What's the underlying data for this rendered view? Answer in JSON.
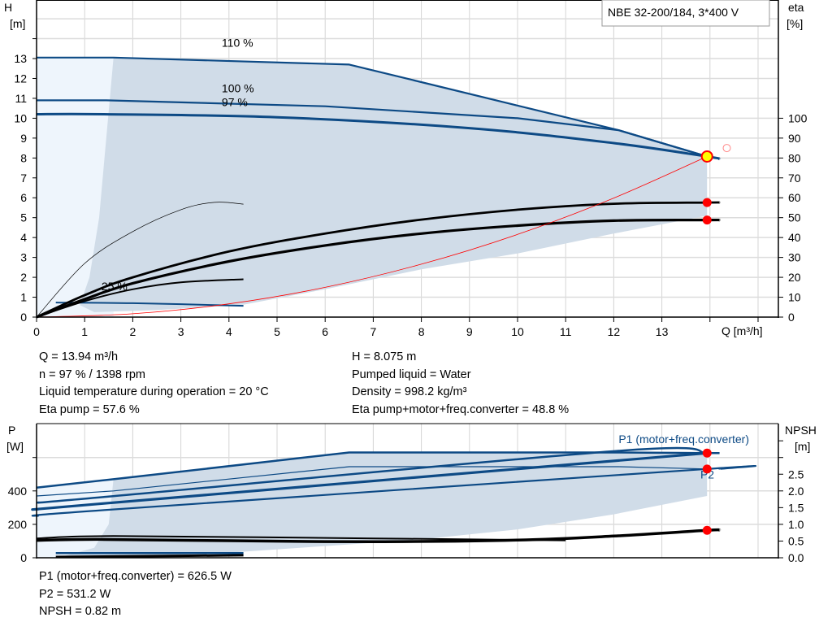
{
  "title_box": "NBE 32-200/184, 3*400 V",
  "colors": {
    "curve_blue": "#0d4a85",
    "region_fill": "#d0dce8",
    "region_light": "#eef5fc",
    "system_curve": "#ff0000",
    "duty_point": "#ff0000",
    "duty_point_fill": "#ffff00"
  },
  "chart_data": [
    {
      "type": "line",
      "title": "",
      "xlabel": "Q [m³/h]",
      "ylabel": "H",
      "yunit": "[m]",
      "y2label": "eta",
      "y2unit": "[%]",
      "xlim": [
        0,
        15.3
      ],
      "ylim": [
        0,
        16
      ],
      "y2lim": [
        0,
        160
      ],
      "xticks": [
        "0",
        "1",
        "2",
        "3",
        "4",
        "5",
        "6",
        "7",
        "8",
        "9",
        "10",
        "11",
        "12",
        "13"
      ],
      "yticks": [
        "0",
        "1",
        "2",
        "3",
        "4",
        "5",
        "6",
        "7",
        "8",
        "9",
        "10",
        "11",
        "12",
        "13"
      ],
      "y2ticks": [
        "0",
        "10",
        "20",
        "30",
        "40",
        "50",
        "60",
        "70",
        "80",
        "90",
        "100"
      ],
      "grid": true,
      "curve_labels": [
        {
          "text": "110 %",
          "x": 3.85,
          "y": 13.6
        },
        {
          "text": "100 %",
          "x": 3.85,
          "y": 11.3
        },
        {
          "text": "97 %",
          "x": 3.85,
          "y": 10.6
        },
        {
          "text": "25 %",
          "x": 1.35,
          "y": 1.35
        }
      ],
      "series": [
        {
          "id": "h-110",
          "axis": "H",
          "points": [
            [
              0,
              13.05
            ],
            [
              1.6,
              13.05
            ],
            [
              6.5,
              12.7
            ],
            [
              12.1,
              9.4
            ],
            [
              13.94,
              8.08
            ]
          ]
        },
        {
          "id": "h-100",
          "axis": "H",
          "points": [
            [
              0,
              10.9
            ],
            [
              1.45,
              10.9
            ],
            [
              6,
              10.6
            ],
            [
              10,
              10.0
            ],
            [
              12.1,
              9.4
            ],
            [
              13.94,
              8.08
            ]
          ]
        },
        {
          "id": "h-97",
          "axis": "H",
          "points": [
            [
              0,
              10.2
            ],
            [
              1.4,
              10.2
            ],
            [
              5,
              10.05
            ],
            [
              9,
              9.5
            ],
            [
              12,
              8.75
            ],
            [
              13.94,
              8.075
            ],
            [
              14.2,
              7.95
            ]
          ]
        },
        {
          "id": "h-25",
          "axis": "H",
          "points": [
            [
              0.4,
              0.73
            ],
            [
              2,
              0.7
            ],
            [
              4.3,
              0.57
            ]
          ]
        },
        {
          "id": "eta-pump",
          "axis": "eta",
          "points": [
            [
              0,
              0
            ],
            [
              1,
              11
            ],
            [
              2,
              20
            ],
            [
              4,
              33
            ],
            [
              6,
              42
            ],
            [
              8,
              49
            ],
            [
              10,
              54
            ],
            [
              12,
              57
            ],
            [
              13.94,
              57.6
            ],
            [
              14.2,
              57.6
            ]
          ]
        },
        {
          "id": "eta-total",
          "axis": "eta",
          "points": [
            [
              0,
              0
            ],
            [
              1,
              9
            ],
            [
              2,
              17
            ],
            [
              4,
              28
            ],
            [
              6,
              36
            ],
            [
              8,
              42
            ],
            [
              10,
              46
            ],
            [
              12,
              48.5
            ],
            [
              13.94,
              48.8
            ],
            [
              14.2,
              48.8
            ]
          ]
        },
        {
          "id": "eta-max-speed-low",
          "axis": "eta",
          "points": [
            [
              0,
              0
            ],
            [
              1,
              27
            ],
            [
              2,
              43
            ],
            [
              3,
              54
            ],
            [
              3.7,
              57.7
            ],
            [
              4.3,
              56.8
            ]
          ]
        },
        {
          "id": "eta-25",
          "axis": "eta",
          "points": [
            [
              0,
              0
            ],
            [
              1,
              8
            ],
            [
              2,
              14
            ],
            [
              3,
              17.5
            ],
            [
              4.3,
              19
            ]
          ]
        },
        {
          "id": "system-curve",
          "axis": "H",
          "points": [
            [
              0,
              0
            ],
            [
              2,
              0.166
            ],
            [
              4,
              0.665
            ],
            [
              6,
              1.496
            ],
            [
              8,
              2.66
            ],
            [
              10,
              4.156
            ],
            [
              12,
              5.985
            ],
            [
              13.94,
              8.075
            ]
          ]
        }
      ],
      "operating_point": {
        "Q": 13.94,
        "H": 8.075,
        "eta_pump": 57.6,
        "eta_total": 48.8
      }
    },
    {
      "type": "line",
      "title": "",
      "ylabel": "P",
      "yunit": "[W]",
      "y2label": "NPSH",
      "y2unit": "[m]",
      "xlim": [
        0,
        15.3
      ],
      "ylim": [
        0,
        800
      ],
      "y2lim": [
        0,
        3.9
      ],
      "yticks": [
        "0",
        "200",
        "400"
      ],
      "y2ticks": [
        "0.0",
        "0.5",
        "1.0",
        "1.5",
        "2.0",
        "2.5"
      ],
      "grid": true,
      "curve_labels": [
        {
          "text": "P1 (motor+freq.converter)",
          "x": 12.1,
          "y": 685
        },
        {
          "text": "P2",
          "x": 13.8,
          "y": 475
        }
      ],
      "series": [
        {
          "id": "p1-max",
          "axis": "P",
          "points": [
            [
              0,
              420
            ],
            [
              1.6,
              470
            ],
            [
              6.5,
              630
            ],
            [
              12.1,
              630
            ],
            [
              13.94,
              626.5
            ],
            [
              14.2,
              626.5
            ]
          ]
        },
        {
          "id": "p1-100",
          "axis": "P",
          "points": [
            [
              0,
              330
            ],
            [
              1.45,
              365
            ],
            [
              12.1,
              640
            ],
            [
              13.94,
              626.5
            ]
          ]
        },
        {
          "id": "p1-97",
          "axis": "P",
          "points": [
            [
              0,
              290
            ],
            [
              1.4,
              325
            ],
            [
              13.94,
              626.5
            ]
          ]
        },
        {
          "id": "p2-max",
          "axis": "P",
          "points": [
            [
              0,
              370
            ],
            [
              1.6,
              400
            ],
            [
              6.5,
              545
            ],
            [
              12.1,
              545
            ],
            [
              13.94,
              531.2
            ]
          ]
        },
        {
          "id": "p2-97",
          "axis": "P",
          "points": [
            [
              0,
              250
            ],
            [
              1.4,
              285
            ],
            [
              13.94,
              531.2
            ],
            [
              14.2,
              531.2
            ]
          ]
        },
        {
          "id": "p-25",
          "axis": "P",
          "points": [
            [
              0.4,
              28
            ],
            [
              4.3,
              28
            ]
          ]
        },
        {
          "id": "p-25-low",
          "axis": "P",
          "points": [
            [
              0.4,
              5
            ],
            [
              4.3,
              15
            ]
          ]
        },
        {
          "id": "npsh",
          "axis": "NPSH",
          "points": [
            [
              0,
              0.52
            ],
            [
              1.3,
              0.55
            ],
            [
              4,
              0.51
            ],
            [
              7,
              0.48
            ],
            [
              10,
              0.53
            ],
            [
              12,
              0.65
            ],
            [
              13.94,
              0.82
            ],
            [
              14.2,
              0.83
            ]
          ]
        },
        {
          "id": "npsh-max",
          "axis": "NPSH",
          "points": [
            [
              0,
              0.58
            ],
            [
              1.6,
              0.65
            ],
            [
              7,
              0.58
            ],
            [
              11,
              0.52
            ]
          ]
        }
      ],
      "operating_point": {
        "P1": 626.5,
        "P2": 531.2,
        "NPSH": 0.82
      }
    }
  ],
  "info_top_left": [
    "Q = 13.94 m³/h",
    "n = 97 % / 1398 rpm",
    "Liquid temperature during operation = 20 °C",
    "Eta pump = 57.6 %"
  ],
  "info_top_right": [
    "H = 8.075 m",
    "Pumped liquid = Water",
    "Density = 998.2 kg/m³",
    "Eta pump+motor+freq.converter = 48.8 %"
  ],
  "info_bottom": [
    "P1 (motor+freq.converter) = 626.5 W",
    "P2 = 531.2 W",
    "NPSH = 0.82 m"
  ]
}
